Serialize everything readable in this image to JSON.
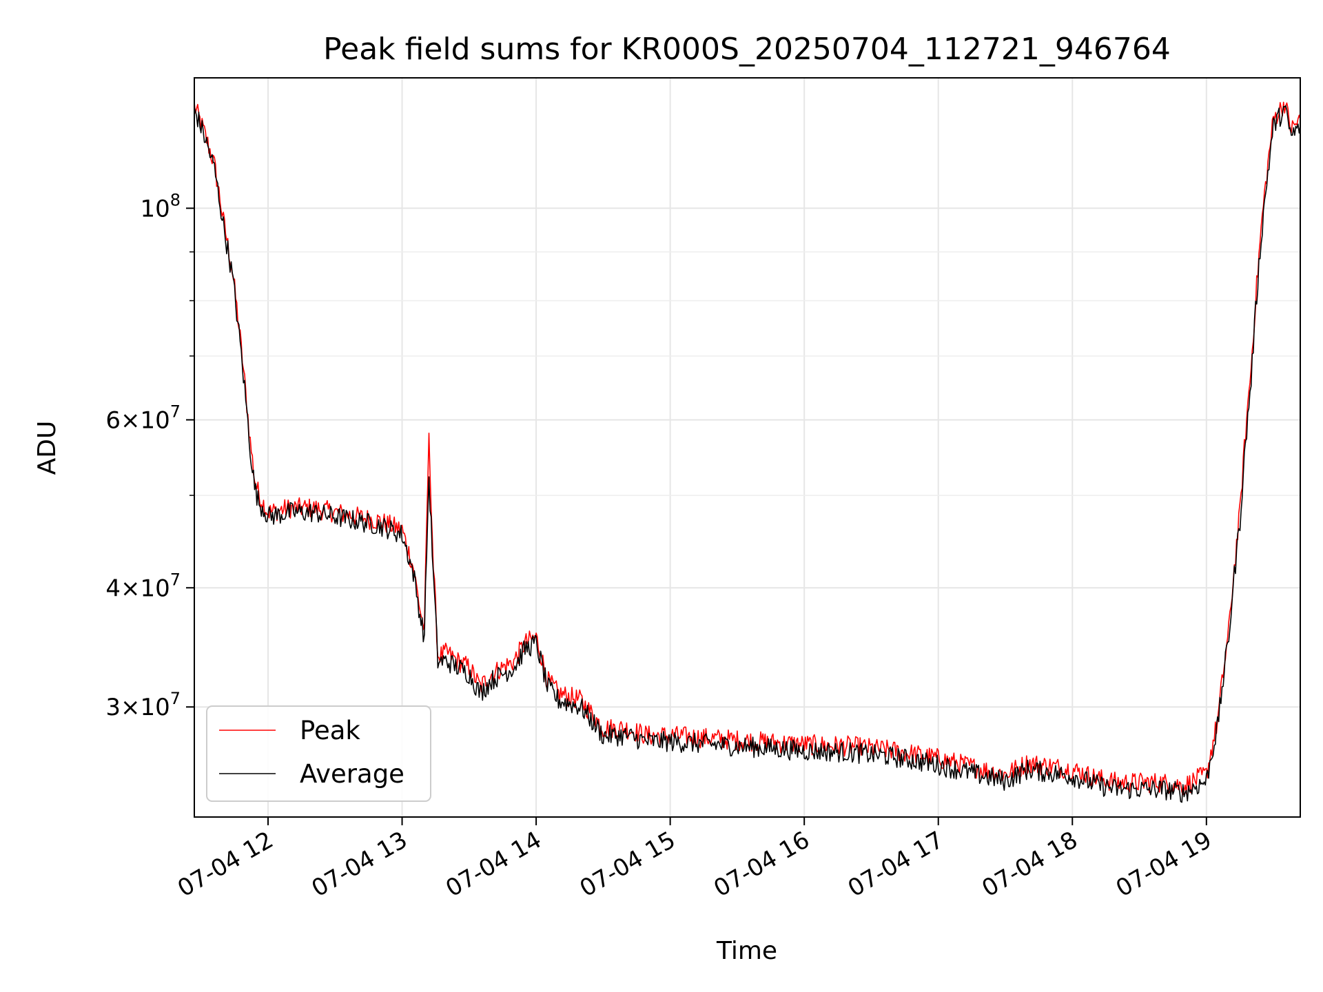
{
  "chart_data": {
    "type": "line",
    "title": "Peak field sums for KR000S_20250704_112721_946764",
    "xlabel": "Time",
    "ylabel": "ADU",
    "yscale": "log",
    "xlim": [
      "07-04 11:27",
      "07-04 19:42"
    ],
    "ylim": [
      23000000,
      137000000
    ],
    "grid": true,
    "legend_position": "lower-left",
    "x_ticks": [
      {
        "label": "07-04 12",
        "hour": 12
      },
      {
        "label": "07-04 13",
        "hour": 13
      },
      {
        "label": "07-04 14",
        "hour": 14
      },
      {
        "label": "07-04 15",
        "hour": 15
      },
      {
        "label": "07-04 16",
        "hour": 16
      },
      {
        "label": "07-04 17",
        "hour": 17
      },
      {
        "label": "07-04 18",
        "hour": 18
      },
      {
        "label": "07-04 19",
        "hour": 19
      }
    ],
    "y_ticks": [
      {
        "value": 30000000,
        "mantissa": "3",
        "exp": "7",
        "kind": "sci"
      },
      {
        "value": 40000000,
        "mantissa": "4",
        "exp": "7",
        "kind": "sci"
      },
      {
        "value": 60000000,
        "mantissa": "6",
        "exp": "7",
        "kind": "sci"
      },
      {
        "value": 100000000,
        "mantissa": "10",
        "exp": "8",
        "kind": "pow"
      }
    ],
    "y_minor_ticks": [
      50000000,
      70000000,
      80000000,
      90000000
    ],
    "series": [
      {
        "name": "Peak",
        "color": "#ff0000"
      },
      {
        "name": "Average",
        "color": "#000000"
      }
    ],
    "x": [
      "11:27",
      "11:31",
      "11:36",
      "11:40",
      "11:44",
      "11:47",
      "11:50",
      "11:52",
      "11:54",
      "11:56",
      "11:58",
      "12:00",
      "12:10",
      "12:20",
      "12:30",
      "12:40",
      "12:50",
      "13:00",
      "13:05",
      "13:08",
      "13:10",
      "13:12",
      "13:14",
      "13:16",
      "13:18",
      "13:20",
      "13:25",
      "13:30",
      "13:35",
      "13:40",
      "13:45",
      "13:50",
      "13:55",
      "14:00",
      "14:05",
      "14:10",
      "14:20",
      "14:30",
      "14:40",
      "14:50",
      "15:00",
      "15:20",
      "15:40",
      "16:00",
      "16:20",
      "16:40",
      "17:00",
      "17:20",
      "17:30",
      "17:40",
      "18:00",
      "18:10",
      "18:20",
      "18:40",
      "18:50",
      "19:00",
      "19:05",
      "19:10",
      "19:15",
      "19:20",
      "19:25",
      "19:30",
      "19:35",
      "19:38",
      "19:42"
    ],
    "values_peak": [
      128,
      121,
      111,
      97,
      86,
      75,
      64,
      57,
      52,
      50,
      49,
      48,
      48.5,
      48.5,
      48,
      47.5,
      47,
      46,
      42,
      38,
      36,
      57,
      42,
      34,
      34,
      34.2,
      33.5,
      33,
      31.5,
      32.5,
      33,
      33.5,
      35,
      35.5,
      32,
      31,
      30.5,
      28.5,
      28.5,
      28,
      28,
      27.8,
      27.6,
      27.4,
      27.3,
      27,
      26.5,
      25.8,
      25.5,
      26.2,
      25.8,
      25.3,
      25,
      25,
      24.8,
      25.5,
      29,
      36,
      48,
      68,
      98,
      124,
      129,
      121,
      124
    ],
    "values_avg": [
      127,
      120,
      110,
      96,
      85,
      74,
      63,
      56,
      51,
      49,
      48.5,
      47.5,
      48,
      48,
      47.5,
      47,
      46.5,
      45.5,
      41.5,
      37.5,
      35.5,
      52,
      41,
      33.5,
      33.5,
      33.5,
      33,
      32.5,
      31,
      32,
      32.5,
      33,
      34.5,
      35,
      31.5,
      30.5,
      30,
      28,
      28,
      27.6,
      27.6,
      27.4,
      27.2,
      27,
      26.9,
      26.6,
      26.1,
      25.4,
      25.1,
      25.8,
      25.4,
      24.9,
      24.6,
      24.6,
      24.4,
      25.1,
      28.6,
      35.5,
      47,
      66,
      96,
      122,
      127,
      119,
      122
    ]
  }
}
